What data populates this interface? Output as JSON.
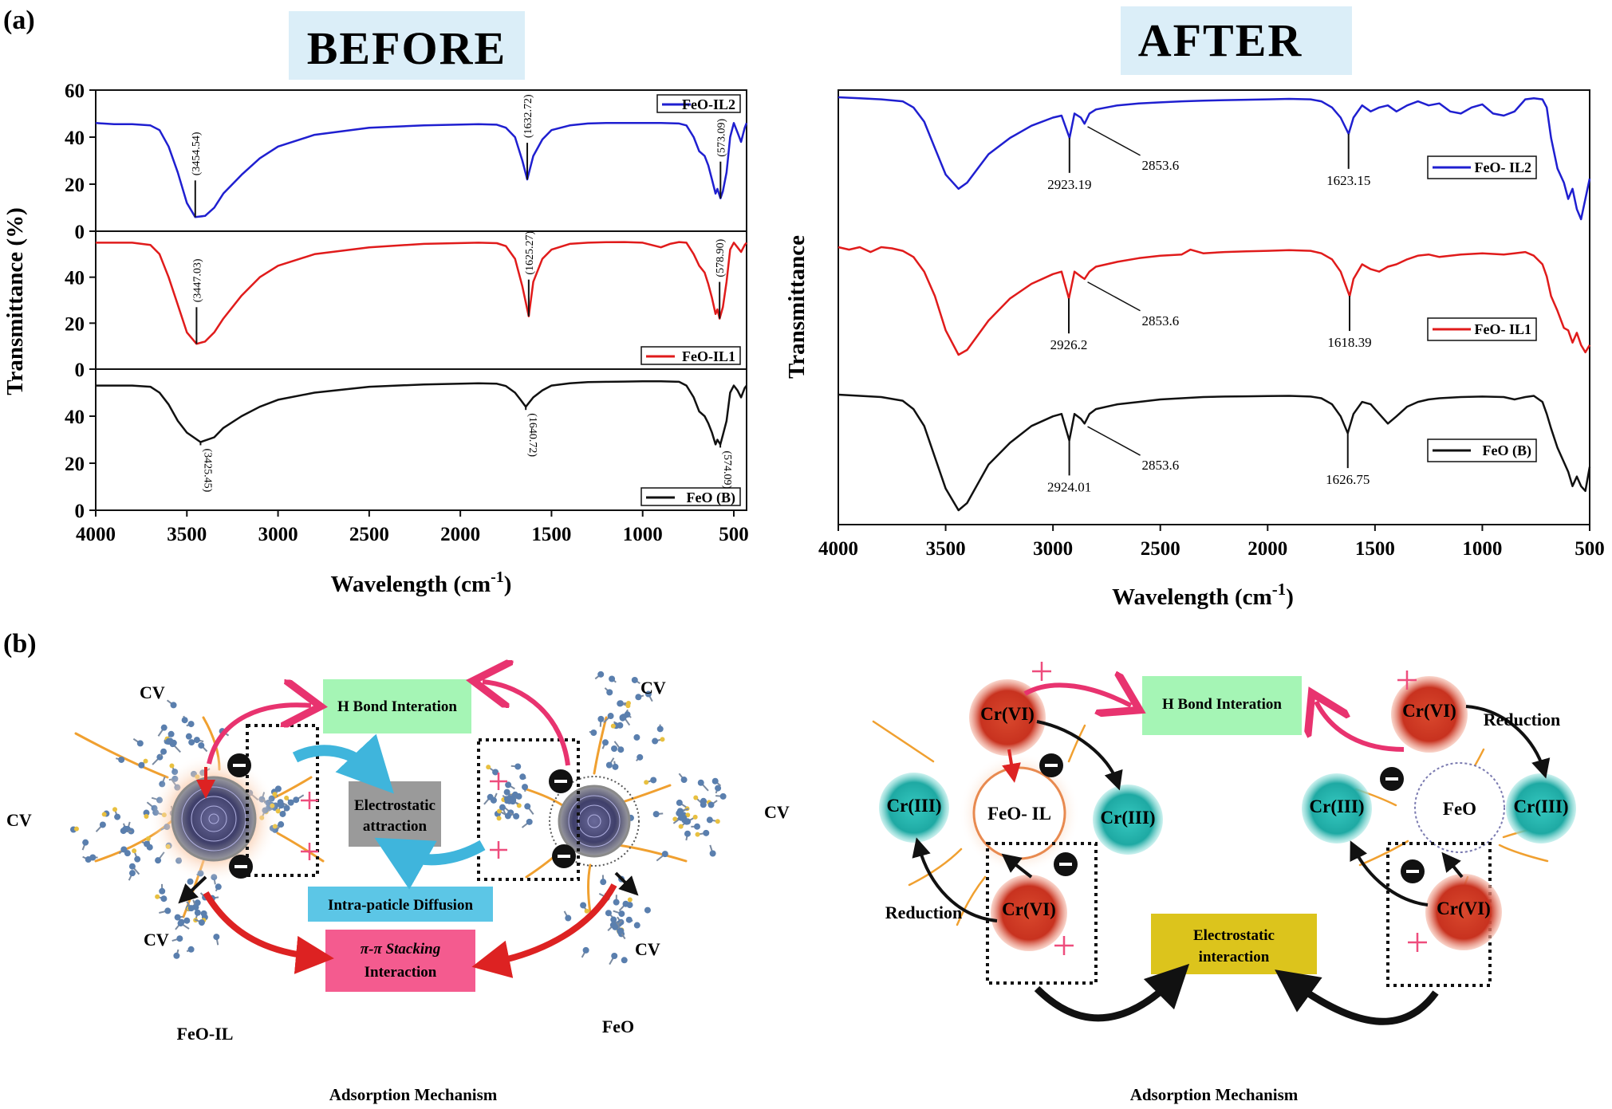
{
  "panel_a_label": "(a)",
  "panel_b_label": "(b)",
  "chart_data": [
    {
      "type": "line",
      "title": "BEFORE",
      "xlabel": "Wavelength (cm",
      "xlabel_sup": "-1",
      "xlabel_close": ")",
      "ylabel": "Transmittance (%)",
      "xlim": [
        4000,
        430
      ],
      "x_ticks": [
        "4000",
        "3500",
        "3000",
        "2500",
        "2000",
        "1500",
        "1000",
        "500"
      ],
      "subplots": [
        {
          "name": "FeO-IL2",
          "color": "#1f1fd0",
          "ylim": [
            0,
            60
          ],
          "y_ticks": [
            "0",
            "20",
            "40",
            "60"
          ],
          "x": [
            4000,
            3900,
            3800,
            3700,
            3650,
            3600,
            3550,
            3500,
            3454,
            3400,
            3350,
            3300,
            3200,
            3100,
            3000,
            2800,
            2500,
            2200,
            1900,
            1800,
            1750,
            1700,
            1660,
            1633,
            1600,
            1550,
            1500,
            1400,
            1300,
            1200,
            1100,
            1000,
            900,
            800,
            760,
            720,
            690,
            660,
            640,
            620,
            600,
            590,
            573,
            560,
            540,
            520,
            500,
            480,
            460,
            440,
            430
          ],
          "y": [
            46,
            45.5,
            45.5,
            45,
            43,
            36,
            25,
            12,
            6,
            6.5,
            10,
            16,
            24,
            31,
            36,
            41,
            44,
            45,
            45.5,
            45.3,
            44,
            40,
            30,
            22,
            32,
            39,
            43,
            45,
            45.8,
            46,
            46,
            46,
            46,
            45.8,
            45,
            40,
            34,
            32,
            28,
            22,
            16,
            18,
            14,
            17,
            25,
            40,
            46,
            42,
            38,
            44,
            46
          ]
        },
        {
          "name": "FeO-IL1",
          "color": "#e01b1b",
          "ylim": [
            0,
            60
          ],
          "y_ticks": [
            "0",
            "20",
            "40"
          ],
          "x": [
            4000,
            3900,
            3800,
            3700,
            3650,
            3600,
            3550,
            3500,
            3447,
            3400,
            3350,
            3300,
            3200,
            3100,
            3000,
            2800,
            2500,
            2200,
            1900,
            1800,
            1750,
            1700,
            1660,
            1625,
            1600,
            1550,
            1500,
            1400,
            1300,
            1200,
            1100,
            1000,
            950,
            900,
            850,
            800,
            760,
            720,
            690,
            660,
            640,
            620,
            600,
            590,
            578,
            560,
            540,
            520,
            500,
            480,
            460,
            440,
            430
          ],
          "y": [
            55,
            55,
            55,
            54,
            50,
            40,
            28,
            16,
            11,
            12,
            16,
            22,
            32,
            40,
            45,
            50,
            53,
            54.5,
            55,
            54.8,
            53.5,
            48,
            36,
            23,
            38,
            48,
            52,
            54.5,
            55,
            55.2,
            55.3,
            55,
            54,
            53,
            54.5,
            55.3,
            55,
            50,
            45,
            42,
            37,
            31,
            24,
            26,
            22,
            27,
            38,
            52,
            55,
            53,
            51,
            54,
            55
          ]
        },
        {
          "name": "FeO (B)",
          "color": "#111111",
          "ylim": [
            0,
            60
          ],
          "y_ticks": [
            "0",
            "20",
            "40"
          ],
          "x": [
            4000,
            3900,
            3800,
            3700,
            3650,
            3600,
            3550,
            3500,
            3425,
            3350,
            3300,
            3200,
            3100,
            3000,
            2800,
            2500,
            2200,
            1900,
            1800,
            1750,
            1700,
            1670,
            1641,
            1600,
            1550,
            1500,
            1400,
            1300,
            1200,
            1100,
            1000,
            900,
            800,
            760,
            720,
            690,
            660,
            640,
            620,
            600,
            590,
            574,
            560,
            540,
            520,
            500,
            480,
            460,
            440,
            430
          ],
          "y": [
            53,
            53,
            53,
            52.5,
            50,
            45,
            38,
            33,
            29,
            31,
            35,
            40,
            44,
            47,
            50,
            52.5,
            53.5,
            54,
            53.8,
            52.8,
            50,
            47,
            44,
            48,
            51,
            53,
            54,
            54.5,
            54.6,
            54.7,
            54.8,
            54.8,
            54.6,
            53,
            48,
            42,
            40,
            37,
            33,
            28,
            30,
            28,
            32,
            38,
            50,
            53,
            51,
            48,
            52,
            53
          ]
        }
      ],
      "annotations": [
        {
          "series": "FeO-IL2",
          "x": 3454,
          "label": "(3454.54)"
        },
        {
          "series": "FeO-IL2",
          "x": 1633,
          "label": "(1632.72)"
        },
        {
          "series": "FeO-IL2",
          "x": 573,
          "label": "(573.09)"
        },
        {
          "series": "FeO-IL1",
          "x": 3447,
          "label": "(3447.03)"
        },
        {
          "series": "FeO-IL1",
          "x": 1625,
          "label": "(1625.27)"
        },
        {
          "series": "FeO-IL1",
          "x": 578,
          "label": "(578.90)"
        },
        {
          "series": "FeO (B)",
          "x": 3425,
          "label": "(3425.45)"
        },
        {
          "series": "FeO (B)",
          "x": 1641,
          "label": "(1640.72)"
        },
        {
          "series": "FeO (B)",
          "x": 574,
          "label": "(574.09)"
        }
      ]
    },
    {
      "type": "line",
      "title": "AFTER",
      "xlabel": "Wavelength (cm",
      "xlabel_sup": "-1",
      "xlabel_close": ")",
      "ylabel": "Transmittance",
      "xlim": [
        4000,
        500
      ],
      "x_ticks": [
        "4000",
        "3500",
        "3000",
        "2500",
        "2000",
        "1500",
        "1000",
        "500"
      ],
      "series": [
        {
          "name": "FeO- IL2",
          "color": "#1f1fd0",
          "x": [
            4000,
            3900,
            3800,
            3700,
            3650,
            3600,
            3550,
            3500,
            3440,
            3400,
            3350,
            3300,
            3200,
            3100,
            3000,
            2960,
            2923,
            2900,
            2870,
            2853,
            2830,
            2800,
            2700,
            2600,
            2500,
            2400,
            2300,
            2200,
            2100,
            2000,
            1900,
            1800,
            1750,
            1700,
            1660,
            1623,
            1600,
            1560,
            1520,
            1480,
            1440,
            1400,
            1350,
            1300,
            1250,
            1200,
            1150,
            1100,
            1050,
            1000,
            950,
            900,
            850,
            800,
            760,
            720,
            700,
            680,
            650,
            620,
            600,
            580,
            560,
            540,
            520,
            500
          ],
          "y": [
            100,
            99.5,
            99,
            98,
            95,
            88,
            75,
            62,
            55,
            58,
            65,
            72,
            80,
            86,
            90,
            91,
            80,
            92,
            90,
            87,
            92,
            94,
            96,
            97,
            97.5,
            98,
            98.3,
            98.6,
            98.8,
            99,
            99.2,
            99,
            98,
            95,
            90,
            82,
            90,
            96,
            93,
            95,
            96,
            93,
            96,
            98,
            96,
            97,
            93,
            92,
            95,
            96.5,
            92,
            91,
            93,
            99,
            99.5,
            99,
            95,
            80,
            65,
            58,
            50,
            55,
            45,
            40,
            50,
            60
          ]
        },
        {
          "name": "FeO- IL1",
          "color": "#e01b1b",
          "x": [
            4000,
            3950,
            3900,
            3850,
            3800,
            3750,
            3700,
            3650,
            3600,
            3550,
            3500,
            3440,
            3400,
            3350,
            3300,
            3200,
            3100,
            3000,
            2960,
            2926,
            2900,
            2870,
            2853,
            2830,
            2800,
            2700,
            2600,
            2500,
            2400,
            2360,
            2300,
            2200,
            2100,
            2000,
            1900,
            1800,
            1750,
            1700,
            1660,
            1618,
            1600,
            1560,
            1520,
            1480,
            1440,
            1400,
            1350,
            1300,
            1250,
            1200,
            1100,
            1000,
            900,
            850,
            800,
            760,
            720,
            700,
            680,
            650,
            620,
            600,
            580,
            560,
            540,
            520,
            500
          ],
          "y": [
            100,
            99,
            100,
            98,
            100,
            99.5,
            98.5,
            96,
            90,
            80,
            66,
            56,
            58,
            64,
            70,
            79,
            85,
            89,
            90,
            79,
            90,
            88,
            87,
            90,
            92,
            94,
            95.5,
            96.5,
            97,
            99,
            97.5,
            98,
            98.3,
            98.5,
            98.8,
            98.5,
            97.5,
            95,
            90,
            80,
            87,
            93,
            91,
            90,
            92,
            93,
            95,
            96.5,
            97,
            96,
            97,
            97.5,
            97,
            97.5,
            98,
            96.5,
            93,
            88,
            80,
            74,
            67,
            66,
            61,
            65,
            60,
            57,
            60
          ]
        },
        {
          "name": "FeO (B)",
          "color": "#111111",
          "x": [
            4000,
            3900,
            3800,
            3700,
            3650,
            3600,
            3550,
            3500,
            3440,
            3400,
            3350,
            3300,
            3200,
            3100,
            3000,
            2960,
            2924,
            2900,
            2870,
            2853,
            2830,
            2800,
            2700,
            2600,
            2500,
            2400,
            2300,
            2200,
            2100,
            2000,
            1900,
            1800,
            1750,
            1700,
            1660,
            1627,
            1600,
            1560,
            1520,
            1480,
            1440,
            1400,
            1350,
            1300,
            1250,
            1200,
            1100,
            1000,
            900,
            850,
            800,
            760,
            720,
            700,
            680,
            650,
            620,
            600,
            580,
            560,
            540,
            520,
            500
          ],
          "y": [
            100,
            99.5,
            99,
            97.5,
            94,
            87,
            74,
            61,
            52,
            55,
            63,
            71,
            80,
            87,
            91,
            92,
            81,
            92,
            90,
            88,
            92,
            94,
            96,
            97,
            98,
            98.5,
            99,
            99.2,
            99.3,
            99.4,
            99.5,
            99.2,
            98.5,
            96,
            91,
            84,
            92,
            97,
            96,
            92,
            88,
            91,
            95,
            97,
            98,
            98.5,
            99,
            99.2,
            99,
            98,
            99,
            99.5,
            97,
            92,
            86,
            78,
            72,
            68,
            62,
            66,
            62,
            60,
            70
          ]
        }
      ],
      "annotations": [
        {
          "series": "FeO- IL2",
          "label": "2923.19"
        },
        {
          "series": "FeO- IL2",
          "label": "2853.6"
        },
        {
          "series": "FeO- IL2",
          "label": "1623.15"
        },
        {
          "series": "FeO- IL1",
          "label": "2926.2"
        },
        {
          "series": "FeO- IL1",
          "label": "2853.6"
        },
        {
          "series": "FeO- IL1",
          "label": "1618.39"
        },
        {
          "series": "FeO (B)",
          "label": "2924.01"
        },
        {
          "series": "FeO (B)",
          "label": "2853.6"
        },
        {
          "series": "FeO (B)",
          "label": "1626.75"
        }
      ]
    }
  ],
  "mech_left": {
    "cv_label": "CV",
    "h_bond": "H Bond Interation",
    "electrostatic_1": "Electrostatic",
    "electrostatic_2": "attraction",
    "intra": "Intra-paticle Diffusion",
    "stacking_1": "π-π Stacking",
    "stacking_2": "Interaction",
    "feoil": "FeO-IL",
    "feo": "FeO",
    "caption": "Adsorption Mechanism",
    "colors": {
      "hbond": "#a5f5b5",
      "electro": "#9a9a9a",
      "intra": "#5cc6e6",
      "stack": "#f45b8f",
      "arrow_pink": "#e8336f",
      "arrow_red": "#dd2222",
      "arrow_cyan": "#3fb5dc",
      "arrow_orange": "#f0a030"
    }
  },
  "mech_right": {
    "crvi": "Cr(VI)",
    "criii": "Cr(III)",
    "feoil": "FeO- IL",
    "feo": "FeO",
    "h_bond": "H Bond Interation",
    "reduction": "Reduction",
    "electro_1": "Electrostatic",
    "electro_2": "interaction",
    "caption": "Adsorption Mechanism",
    "colors": {
      "crvi": "#d23a25",
      "criii": "#24b5ad",
      "hbond": "#a5f5b5",
      "electro": "#dcc41c"
    }
  }
}
